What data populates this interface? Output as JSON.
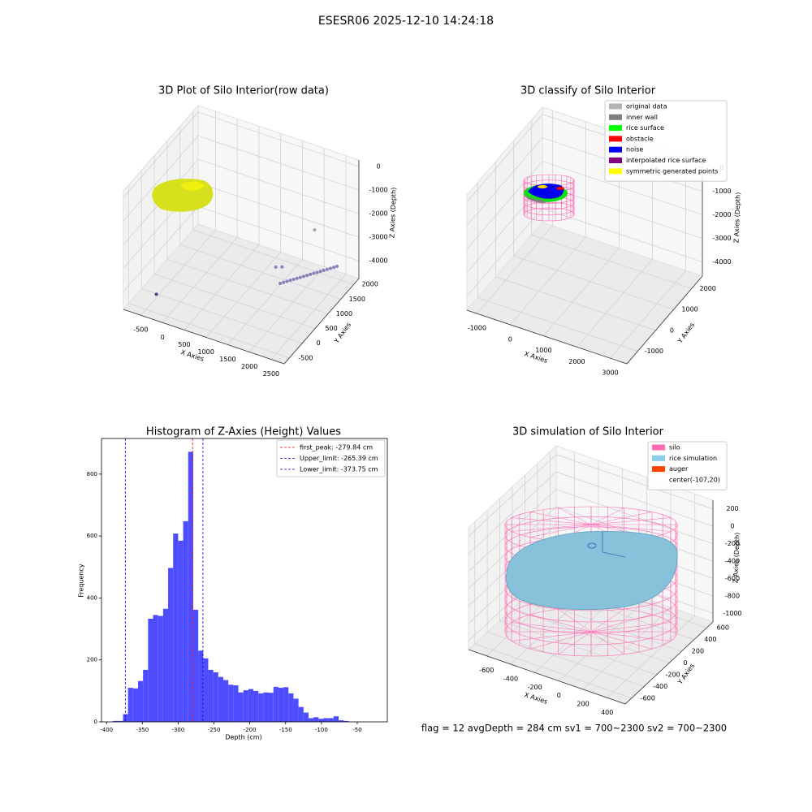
{
  "title": "ESESR06 2025-12-10 14:24:18",
  "chart_data": [
    {
      "type": "scatter3d",
      "title": "3D Plot of Silo Interior(row data)",
      "xlabel": "X Axies",
      "ylabel": "Y Axies",
      "zlabel": "Z Axies (Depth)",
      "xlim": [
        -900,
        2800
      ],
      "ylim": [
        -700,
        2200
      ],
      "zlim": [
        -4750,
        280
      ],
      "xticks": [
        -500,
        0,
        500,
        1000,
        1500,
        2000,
        2500
      ],
      "yticks": [
        -500,
        0,
        500,
        1000,
        1500,
        2000
      ],
      "zticks": [
        0,
        -1000,
        -2000,
        -3000,
        -4000
      ],
      "series": [
        {
          "color": "#8a7db8",
          "x": [
            1753,
            1797,
            1841,
            1885,
            1929,
            1973,
            2017,
            2061,
            2105,
            2149,
            2193,
            2237,
            2281,
            2325,
            2369,
            2413,
            2457,
            2497,
            1420,
            1530
          ],
          "y": [
            910,
            966,
            1022,
            1078,
            1134,
            1190,
            1246,
            1302,
            1358,
            1414,
            1470,
            1526,
            1582,
            1638,
            1694,
            1750,
            1806,
            1861,
            1300,
            1360
          ],
          "z": [
            -4000,
            -4000,
            -4000,
            -4000,
            -4000,
            -4000,
            -4000,
            -4000,
            -4000,
            -4000,
            -4000,
            -4000,
            -4000,
            -4000,
            -4000,
            -4000,
            -4000,
            -4000,
            -4000,
            -4000
          ]
        },
        {
          "color": "#a8a8a8",
          "x": [
            1900
          ],
          "y": [
            2000
          ],
          "z": [
            -3000
          ]
        },
        {
          "color": "#5b3a8c",
          "x": [
            -350
          ],
          "y": [
            -350
          ],
          "z": [
            -4200
          ]
        }
      ]
    },
    {
      "type": "classify3d",
      "title": "3D classify of Silo Interior",
      "xlabel": "X Axies",
      "ylabel": "Y Axies",
      "zlabel": "Z Axies (Depth)",
      "xlim": [
        -1300,
        3500
      ],
      "ylim": [
        -1600,
        2600
      ],
      "zlim": [
        -4600,
        300
      ],
      "xticks": [
        -1000,
        0,
        1000,
        2000,
        3000
      ],
      "yticks": [
        -1000,
        0,
        1000,
        2000
      ],
      "zticks": [
        0,
        -1000,
        -2000,
        -3000,
        -4000
      ],
      "series": [
        {
          "name": "original data",
          "color": "#b3b3b3"
        },
        {
          "name": "inner wall",
          "color": "#808080"
        },
        {
          "name": "rice surface",
          "color": "#00ff00"
        },
        {
          "name": "obstacle",
          "color": "#ff0000"
        },
        {
          "name": "noise",
          "color": "#0000ff"
        },
        {
          "name": "interpolated rice surface",
          "color": "#800080"
        },
        {
          "name": "symmetric generated points",
          "color": "#ffff00"
        }
      ]
    },
    {
      "type": "histogram",
      "title": "Histogram of Z-Axies (Height) Values",
      "xlabel": "Depth (cm)",
      "ylabel": "Frequency",
      "color": "#4d4dff",
      "xlim": [
        -407,
        -8
      ],
      "ylim": [
        0,
        915
      ],
      "xticks": [
        -400,
        -350,
        -300,
        -250,
        -200,
        -150,
        -100,
        -50
      ],
      "yticks": [
        0,
        200,
        400,
        600,
        800
      ],
      "bins": [
        -391,
        -384,
        -377,
        -370,
        -363,
        -356,
        -349,
        -342,
        -335,
        -328,
        -321,
        -314,
        -307,
        -300,
        -293,
        -286,
        -279,
        -272,
        -265,
        -258,
        -251,
        -244,
        -237,
        -230,
        -223,
        -216,
        -209,
        -202,
        -195,
        -188,
        -181,
        -174,
        -167,
        -160,
        -153,
        -146,
        -139,
        -132,
        -125,
        -118,
        -111,
        -104,
        -97,
        -90,
        -83,
        -76,
        -69,
        -62
      ],
      "counts": [
        3,
        3,
        25,
        110,
        108,
        132,
        168,
        333,
        345,
        342,
        365,
        497,
        608,
        585,
        648,
        872,
        362,
        230,
        205,
        168,
        160,
        145,
        135,
        120,
        118,
        95,
        102,
        106,
        100,
        92,
        95,
        94,
        113,
        110,
        112,
        92,
        75,
        48,
        30,
        12,
        15,
        10,
        12,
        12,
        18,
        5,
        3
      ],
      "lines": [
        {
          "name": "first_peak: -279.84 cm",
          "value": -279.84,
          "color": "#ff0000"
        },
        {
          "name": "Upper_limit: -265.39 cm",
          "value": -265.39,
          "color": "#0000ff"
        },
        {
          "name": "Lower_limit: -373.75 cm",
          "value": -373.75,
          "color": "#0000ff"
        }
      ]
    },
    {
      "type": "simulation3d",
      "title": "3D simulation of Silo Interior",
      "xlabel": "X Axies",
      "ylabel": "Y Axies",
      "zlabel": "Z Axies (Depth)",
      "xlim": [
        -750,
        550
      ],
      "ylim": [
        -700,
        700
      ],
      "zlim": [
        -1100,
        300
      ],
      "xticks": [
        -600,
        -400,
        -200,
        0,
        200,
        400
      ],
      "yticks": [
        -600,
        -400,
        -200,
        0,
        200,
        400,
        600
      ],
      "zticks": [
        200,
        0,
        -200,
        -400,
        -600,
        -800,
        -1000
      ],
      "series": [
        {
          "name": "silo",
          "color": "#ff69b4"
        },
        {
          "name": "rice simulation",
          "color": "#87ceeb"
        },
        {
          "name": "auger",
          "color": "#ff4500"
        },
        {
          "name": "center(-107,20)",
          "color": "#ffffff"
        }
      ]
    }
  ],
  "footer": "flag = 12   avgDepth = 284 cm  sv1 = 700~2300  sv2 = 700~2300"
}
